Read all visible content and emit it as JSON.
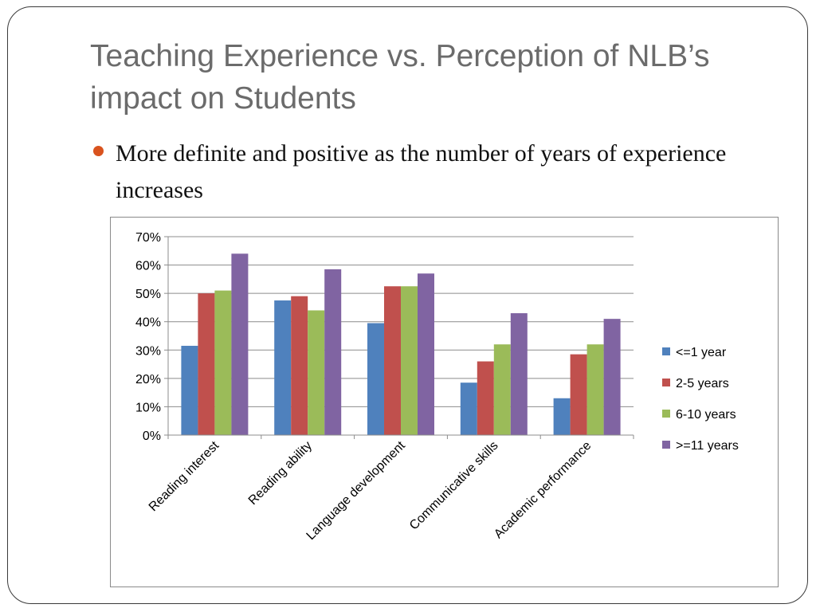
{
  "slide": {
    "title": "Teaching Experience vs. Perception of NLB’s impact on Students",
    "bullet": "More definite and positive as the number of years of experience increases"
  },
  "colors": {
    "accent_bullet": "#d9531e",
    "title_text": "#6b6b6b"
  },
  "chart_data": {
    "type": "bar",
    "title": "",
    "xlabel": "",
    "ylabel": "",
    "categories": [
      "Reading interest",
      "Reading ability",
      "Language development",
      "Communicative skills",
      "Academic performance"
    ],
    "ylim": [
      0,
      70
    ],
    "y_ticks": [
      0,
      10,
      20,
      30,
      40,
      50,
      60,
      70
    ],
    "y_tick_labels": [
      "0%",
      "10%",
      "20%",
      "30%",
      "40%",
      "50%",
      "60%",
      "70%"
    ],
    "value_unit": "%",
    "grid": true,
    "legend_position": "right",
    "series": [
      {
        "name": "<=1 year",
        "color": "#4f81bd",
        "values": [
          31.5,
          47.5,
          39.5,
          18.5,
          13
        ]
      },
      {
        "name": "2-5 years",
        "color": "#c0504d",
        "values": [
          50,
          49,
          52.5,
          26,
          28.5
        ]
      },
      {
        "name": "6-10 years",
        "color": "#9bbb59",
        "values": [
          51,
          44,
          52.5,
          32,
          32
        ]
      },
      {
        "name": ">=11 years",
        "color": "#8064a2",
        "values": [
          64,
          58.5,
          57,
          43,
          41
        ]
      }
    ]
  }
}
